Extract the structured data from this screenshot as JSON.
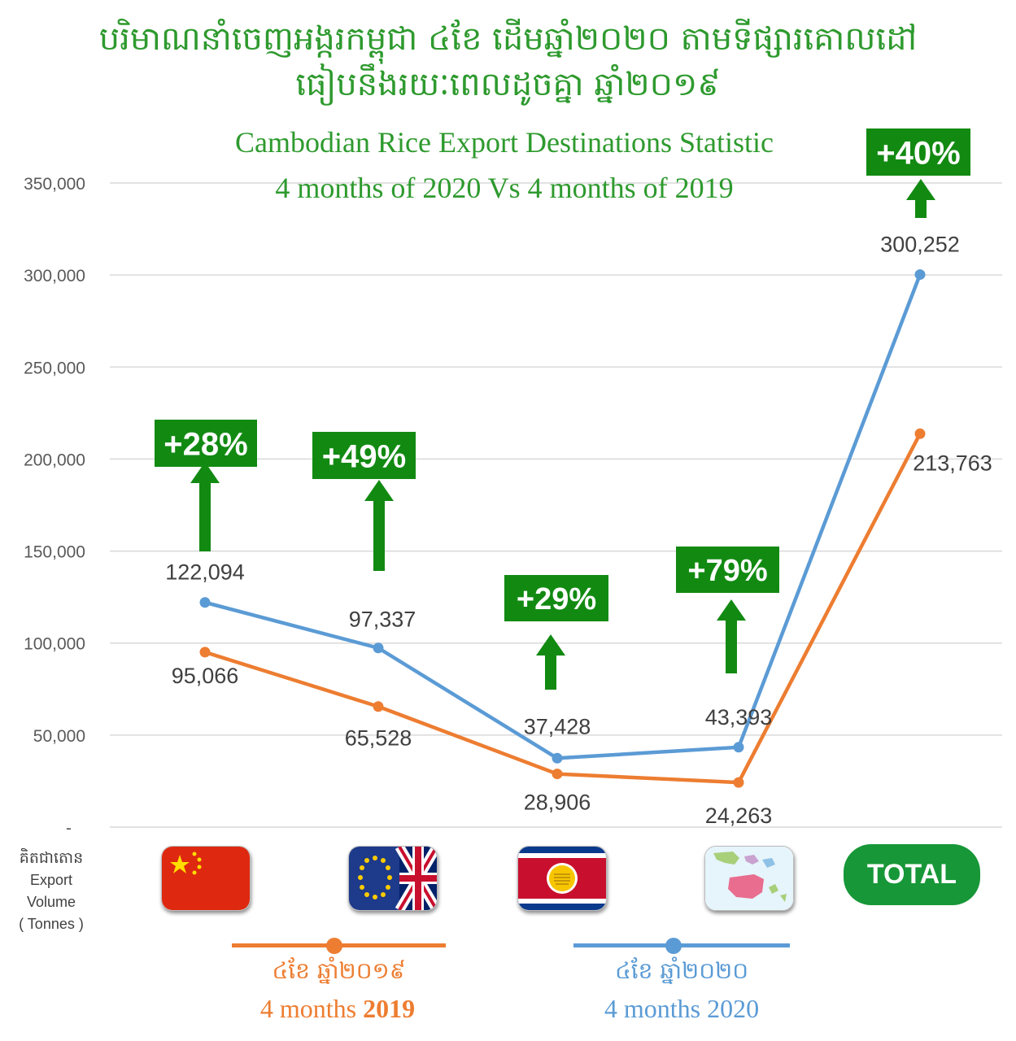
{
  "title_km": {
    "line1": "បរិមាណនាំចេញអង្ករកម្ពុជា ៤ខែ ដើមឆ្នាំ២០២០ តាមទីផ្សារគោលដៅ",
    "line2": "ធៀបនឹងរយៈពេលដូចគ្នា ឆ្នាំ២០១៩"
  },
  "title_en": {
    "line1": "Cambodian Rice Export Destinations Statistic",
    "line2": "4 months of 2020 Vs 4 months of 2019"
  },
  "side_note": {
    "km": "គិតជាតោន",
    "line1": "Export",
    "line2": "Volume",
    "line3": "( Tonnes )"
  },
  "categories": [
    {
      "label": "",
      "icon": "china-flag-icon"
    },
    {
      "label": "",
      "icon": "eu-uk-flag-icon"
    },
    {
      "label": "",
      "icon": "asean-flag-icon"
    },
    {
      "label": "",
      "icon": "asia-oceania-map-icon"
    },
    {
      "label": "TOTAL",
      "icon": "total-button"
    }
  ],
  "legend": {
    "series_2019": {
      "km": "៤ខែ ឆ្នាំ២០១៩",
      "en_prefix": "4 months ",
      "en_year": "2019"
    },
    "series_2020": {
      "km": "៤ខែ ឆ្នាំ២០២០",
      "en": "4 months 2020"
    }
  },
  "chart_data": {
    "type": "line",
    "categories": [
      "China",
      "EU/UK",
      "ASEAN",
      "Other",
      "TOTAL"
    ],
    "series": [
      {
        "name": "4 months 2020",
        "color": "#5b9bd5",
        "values": [
          122094,
          97337,
          37428,
          43393,
          300252
        ],
        "labels": [
          "122,094",
          "97,337",
          "37,428",
          "43,393",
          "300,252"
        ]
      },
      {
        "name": "4 months 2019",
        "color": "#ed7d31",
        "values": [
          95066,
          65528,
          28906,
          24263,
          213763
        ],
        "labels": [
          "95,066",
          "65,528",
          "28,906",
          "24,263",
          "213,763"
        ]
      }
    ],
    "growth": [
      "+28%",
      "+49%",
      "+29%",
      "+79%",
      "+40%"
    ],
    "growth_color": "#128a12",
    "yticks": [
      "-",
      "50,000",
      "100,000",
      "150,000",
      "200,000",
      "250,000",
      "300,000",
      "350,000"
    ],
    "ylim": [
      0,
      350000
    ],
    "grid": true
  }
}
